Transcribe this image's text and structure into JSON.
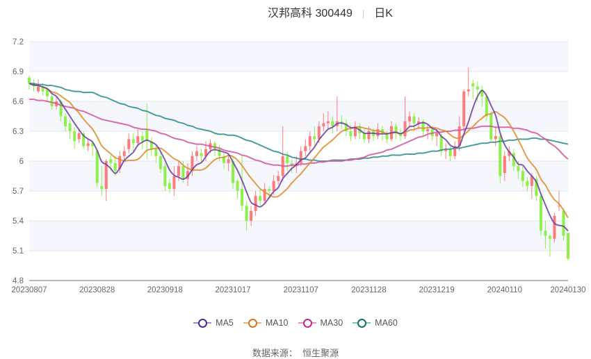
{
  "header": {
    "title": "汉邦高科 300449",
    "period": "日K"
  },
  "source": {
    "label": "数据来源：",
    "value": "恒生聚源"
  },
  "chart_data": {
    "type": "candlestick",
    "ylim": [
      4.8,
      7.2
    ],
    "yticks": [
      "7.2",
      "6.9",
      "6.6",
      "6.3",
      "6",
      "5.7",
      "5.4",
      "5.1",
      "4.8"
    ],
    "xticks": [
      {
        "day": 0,
        "label": "20230807"
      },
      {
        "day": 15,
        "label": "20230828"
      },
      {
        "day": 30,
        "label": "20230918"
      },
      {
        "day": 45,
        "label": "20231017"
      },
      {
        "day": 60,
        "label": "20231107"
      },
      {
        "day": 75,
        "label": "20231128"
      },
      {
        "day": 90,
        "label": "20231219"
      },
      {
        "day": 105,
        "label": "20240110"
      },
      {
        "day": 119,
        "label": "20240130"
      }
    ],
    "grid": true,
    "legend_position": "bottom",
    "colors": {
      "up": "#ff7b7b",
      "down": "#8ef04a",
      "MA5": "#6a3fa0",
      "MA10": "#e08a2c",
      "MA30": "#d4529f",
      "MA60": "#2a8c8c"
    },
    "candle_fields": [
      "open",
      "close",
      "low",
      "high"
    ],
    "candles": [
      [
        6.84,
        6.78,
        6.72,
        6.86
      ],
      [
        6.78,
        6.75,
        6.7,
        6.82
      ],
      [
        6.7,
        6.75,
        6.68,
        6.82
      ],
      [
        6.75,
        6.7,
        6.66,
        6.78
      ],
      [
        6.72,
        6.65,
        6.6,
        6.74
      ],
      [
        6.65,
        6.55,
        6.52,
        6.68
      ],
      [
        6.55,
        6.6,
        6.52,
        6.64
      ],
      [
        6.6,
        6.45,
        6.4,
        6.62
      ],
      [
        6.45,
        6.35,
        6.3,
        6.48
      ],
      [
        6.38,
        6.3,
        6.22,
        6.42
      ],
      [
        6.3,
        6.2,
        6.12,
        6.34
      ],
      [
        6.22,
        6.28,
        6.18,
        6.32
      ],
      [
        6.28,
        6.15,
        6.12,
        6.3
      ],
      [
        6.15,
        6.18,
        6.1,
        6.22
      ],
      [
        6.18,
        6.15,
        6.05,
        6.2
      ],
      [
        6.1,
        5.78,
        5.74,
        6.12
      ],
      [
        5.75,
        5.72,
        5.65,
        5.95
      ],
      [
        5.72,
        6.0,
        5.6,
        6.02
      ],
      [
        6.02,
        5.98,
        5.9,
        6.06
      ],
      [
        5.98,
        5.9,
        5.85,
        6.05
      ],
      [
        5.92,
        6.05,
        5.88,
        6.1
      ],
      [
        6.05,
        6.1,
        6.0,
        6.15
      ],
      [
        6.12,
        6.22,
        6.08,
        6.28
      ],
      [
        6.22,
        6.18,
        6.1,
        6.28
      ],
      [
        6.18,
        6.25,
        6.15,
        6.32
      ],
      [
        6.25,
        6.2,
        6.12,
        6.3
      ],
      [
        6.32,
        6.2,
        6.02,
        6.58
      ],
      [
        6.2,
        6.12,
        6.05,
        6.24
      ],
      [
        6.12,
        6.05,
        5.98,
        6.15
      ],
      [
        6.05,
        5.92,
        5.88,
        6.08
      ],
      [
        5.95,
        5.75,
        5.7,
        5.98
      ],
      [
        5.78,
        5.72,
        5.68,
        5.82
      ],
      [
        5.72,
        5.85,
        5.65,
        5.95
      ],
      [
        5.85,
        5.95,
        5.8,
        6.0
      ],
      [
        5.95,
        5.82,
        5.78,
        6.0
      ],
      [
        5.82,
        5.9,
        5.75,
        5.98
      ],
      [
        5.9,
        6.05,
        5.85,
        6.1
      ],
      [
        6.05,
        6.1,
        6.0,
        6.15
      ],
      [
        6.08,
        6.05,
        5.98,
        6.12
      ],
      [
        6.05,
        6.12,
        6.0,
        6.2
      ],
      [
        6.12,
        6.18,
        6.08,
        6.22
      ],
      [
        6.18,
        6.12,
        6.05,
        6.2
      ],
      [
        6.12,
        6.05,
        6.0,
        6.16
      ],
      [
        6.05,
        5.98,
        5.92,
        6.08
      ],
      [
        5.98,
        6.02,
        5.9,
        6.06
      ],
      [
        6.0,
        5.78,
        5.72,
        6.05
      ],
      [
        5.8,
        5.7,
        5.62,
        5.82
      ],
      [
        5.72,
        5.55,
        5.5,
        6.05
      ],
      [
        5.55,
        5.4,
        5.3,
        5.6
      ],
      [
        5.4,
        5.5,
        5.35,
        5.55
      ],
      [
        5.5,
        5.65,
        5.45,
        5.7
      ],
      [
        5.65,
        5.6,
        5.55,
        5.72
      ],
      [
        5.6,
        5.72,
        5.58,
        5.78
      ],
      [
        5.72,
        5.7,
        5.62,
        5.75
      ],
      [
        5.7,
        5.8,
        5.66,
        5.86
      ],
      [
        5.8,
        5.85,
        5.76,
        5.9
      ],
      [
        5.85,
        6.05,
        5.8,
        6.35
      ],
      [
        6.05,
        5.98,
        5.9,
        6.1
      ],
      [
        5.98,
        5.95,
        5.88,
        6.02
      ],
      [
        5.95,
        5.98,
        5.88,
        6.05
      ],
      [
        5.98,
        6.1,
        5.95,
        6.15
      ],
      [
        6.1,
        6.15,
        6.05,
        6.22
      ],
      [
        6.15,
        6.25,
        6.1,
        6.3
      ],
      [
        6.25,
        6.22,
        6.15,
        6.35
      ],
      [
        6.22,
        6.35,
        6.18,
        6.4
      ],
      [
        6.35,
        6.38,
        6.3,
        6.48
      ],
      [
        6.38,
        6.4,
        6.32,
        6.5
      ],
      [
        6.4,
        6.35,
        6.28,
        6.45
      ],
      [
        6.35,
        6.4,
        6.3,
        6.65
      ],
      [
        6.4,
        6.38,
        6.32,
        6.46
      ],
      [
        6.38,
        6.3,
        6.25,
        6.42
      ],
      [
        6.3,
        6.25,
        6.2,
        6.36
      ],
      [
        6.25,
        6.35,
        6.22,
        6.4
      ],
      [
        6.35,
        6.28,
        6.22,
        6.38
      ],
      [
        6.28,
        6.22,
        6.18,
        6.32
      ],
      [
        6.22,
        6.3,
        6.18,
        6.35
      ],
      [
        6.3,
        6.25,
        6.2,
        6.33
      ],
      [
        6.25,
        6.32,
        6.22,
        6.38
      ],
      [
        6.32,
        6.28,
        6.2,
        6.35
      ],
      [
        6.28,
        6.22,
        6.18,
        6.3
      ],
      [
        6.22,
        6.35,
        6.2,
        6.4
      ],
      [
        6.35,
        6.28,
        6.22,
        6.38
      ],
      [
        6.28,
        6.25,
        6.2,
        6.32
      ],
      [
        6.25,
        6.4,
        6.22,
        6.65
      ],
      [
        6.4,
        6.45,
        6.35,
        6.5
      ],
      [
        6.45,
        6.38,
        6.3,
        6.48
      ],
      [
        6.38,
        6.4,
        6.32,
        6.44
      ],
      [
        6.4,
        6.3,
        6.25,
        6.42
      ],
      [
        6.3,
        6.32,
        6.22,
        6.36
      ],
      [
        6.32,
        6.25,
        6.2,
        6.35
      ],
      [
        6.25,
        6.28,
        6.15,
        6.32
      ],
      [
        6.25,
        6.1,
        6.05,
        6.28
      ],
      [
        6.1,
        6.12,
        6.02,
        6.18
      ],
      [
        6.12,
        6.05,
        6.0,
        6.15
      ],
      [
        6.05,
        6.15,
        6.02,
        6.2
      ],
      [
        6.15,
        6.35,
        6.1,
        6.45
      ],
      [
        6.35,
        6.7,
        6.3,
        6.72
      ],
      [
        6.7,
        6.72,
        6.65,
        6.94
      ],
      [
        6.78,
        6.75,
        6.62,
        6.82
      ],
      [
        6.75,
        6.72,
        6.6,
        6.8
      ],
      [
        6.72,
        6.65,
        6.55,
        6.76
      ],
      [
        6.65,
        6.45,
        6.4,
        6.68
      ],
      [
        6.48,
        6.22,
        6.2,
        6.5
      ],
      [
        6.22,
        6.25,
        6.15,
        6.35
      ],
      [
        6.25,
        5.85,
        5.78,
        6.28
      ],
      [
        5.88,
        6.05,
        5.8,
        6.1
      ],
      [
        6.05,
        6.1,
        6.0,
        6.15
      ],
      [
        6.08,
        5.95,
        5.9,
        6.12
      ],
      [
        5.95,
        5.9,
        5.82,
        6.0
      ],
      [
        5.9,
        5.8,
        5.74,
        5.95
      ],
      [
        5.8,
        5.75,
        5.7,
        5.84
      ],
      [
        5.75,
        5.85,
        5.62,
        5.88
      ],
      [
        5.82,
        5.65,
        5.6,
        5.85
      ],
      [
        5.65,
        5.3,
        5.25,
        5.68
      ],
      [
        5.3,
        5.25,
        5.12,
        5.4
      ],
      [
        5.25,
        5.22,
        5.04,
        5.26
      ],
      [
        5.22,
        5.45,
        5.18,
        5.48
      ],
      [
        5.55,
        5.55,
        5.5,
        5.7
      ],
      [
        5.5,
        5.25,
        5.2,
        5.53
      ],
      [
        5.28,
        5.02,
        5.0,
        5.28
      ]
    ],
    "ma30": [
      6.62,
      6.62,
      6.61,
      6.61,
      6.6,
      6.59,
      6.58,
      6.56,
      6.55,
      6.54,
      6.53,
      6.51,
      6.5,
      6.48,
      6.46,
      6.44,
      6.42,
      6.41,
      6.4,
      6.39,
      6.38,
      6.37,
      6.36,
      6.34,
      6.33,
      6.32,
      6.32,
      6.31,
      6.3,
      6.28,
      6.27,
      6.25,
      6.23,
      6.22,
      6.21,
      6.19,
      6.18,
      6.17,
      6.17,
      6.16,
      6.15,
      6.14,
      6.13,
      6.11,
      6.1,
      6.09,
      6.08,
      6.06,
      6.05,
      6.03,
      6.01,
      6.0,
      5.98,
      5.97,
      5.96,
      5.96,
      5.95,
      5.95,
      5.96,
      5.96,
      5.97,
      5.97,
      5.98,
      5.98,
      5.99,
      5.99,
      6.0,
      6.0,
      6.0,
      6.0,
      6.01,
      6.01,
      6.02,
      6.03,
      6.04,
      6.06,
      6.07,
      6.08,
      6.09,
      6.11,
      6.12,
      6.14,
      6.16,
      6.18,
      6.2,
      6.22,
      6.24,
      6.25,
      6.27,
      6.28,
      6.29,
      6.29,
      6.3,
      6.3,
      6.31,
      6.31,
      6.32,
      6.33,
      6.33,
      6.34,
      6.35,
      6.35,
      6.35,
      6.34,
      6.34,
      6.34,
      6.34,
      6.33,
      6.33,
      6.32,
      6.31,
      6.29,
      6.28,
      6.25,
      6.22,
      6.18,
      6.15,
      6.11,
      6.06,
      6.02
    ],
    "ma60": [
      6.78,
      6.78,
      6.77,
      6.77,
      6.76,
      6.76,
      6.75,
      6.74,
      6.72,
      6.71,
      6.7,
      6.7,
      6.69,
      6.69,
      6.69,
      6.67,
      6.65,
      6.64,
      6.62,
      6.6,
      6.58,
      6.57,
      6.55,
      6.54,
      6.53,
      6.51,
      6.5,
      6.48,
      6.46,
      6.45,
      6.43,
      6.42,
      6.41,
      6.39,
      6.38,
      6.36,
      6.35,
      6.33,
      6.32,
      6.31,
      6.3,
      6.28,
      6.27,
      6.27,
      6.26,
      6.26,
      6.25,
      6.23,
      6.21,
      6.2,
      6.18,
      6.16,
      6.14,
      6.12,
      6.1,
      6.09,
      6.07,
      6.06,
      6.04,
      6.03,
      6.02,
      6.02,
      6.01,
      6.01,
      6.0,
      6.0,
      6.0,
      6.01,
      6.01,
      6.01,
      6.01,
      6.02,
      6.02,
      6.02,
      6.03,
      6.03,
      6.04,
      6.04,
      6.05,
      6.05,
      6.06,
      6.06,
      6.06,
      6.07,
      6.07,
      6.07,
      6.08,
      6.08,
      6.09,
      6.1,
      6.1,
      6.11,
      6.12,
      6.12,
      6.13,
      6.13,
      6.14,
      6.15,
      6.16,
      6.17,
      6.18,
      6.18,
      6.19,
      6.19,
      6.2,
      6.2,
      6.21,
      6.21,
      6.22,
      6.22,
      6.22,
      6.23,
      6.23,
      6.22,
      6.22,
      6.21,
      6.2,
      6.19,
      6.18,
      6.17
    ]
  },
  "legend": [
    {
      "label": "MA5",
      "color": "#6a3fa0"
    },
    {
      "label": "MA10",
      "color": "#e08a2c"
    },
    {
      "label": "MA30",
      "color": "#d4529f"
    },
    {
      "label": "MA60",
      "color": "#2a8c8c"
    }
  ]
}
